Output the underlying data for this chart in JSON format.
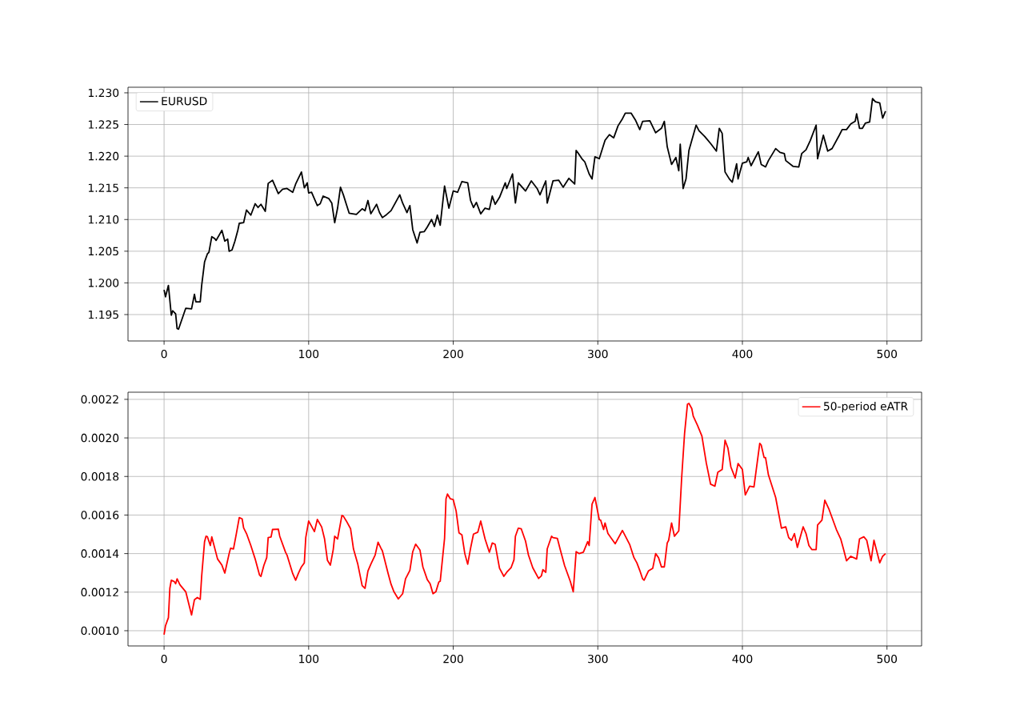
{
  "chart_data": [
    {
      "type": "line",
      "xlim": [
        -24.95,
        523.95
      ],
      "ylim": [
        1.19083,
        1.23088
      ],
      "grid": true,
      "legend": "top left",
      "xticks": [
        0,
        100,
        200,
        300,
        400,
        500
      ],
      "yticks": [
        1.195,
        {
          "value": 1.2,
          "label": "1.200"
        },
        1.205,
        {
          "value": 1.21,
          "label": "1.210"
        },
        1.215,
        {
          "value": 1.22,
          "label": "1.220"
        },
        1.225,
        {
          "value": 1.23,
          "label": "1.230"
        }
      ],
      "series": [
        {
          "name": "EURUSD",
          "color": "#000000",
          "x": [
            0,
            1,
            3,
            5,
            6,
            8,
            9,
            10,
            15,
            19,
            21,
            22,
            25,
            26,
            28,
            30,
            31,
            33,
            35,
            36,
            40,
            42,
            44,
            45,
            47,
            49,
            51,
            52,
            55,
            57,
            60,
            63,
            65,
            67,
            70,
            72,
            75,
            79,
            82,
            85,
            89,
            91,
            95,
            97,
            99,
            100,
            102,
            106,
            108,
            110,
            114,
            116,
            118,
            120,
            122,
            124,
            128,
            133,
            137,
            139,
            141,
            143,
            147,
            149,
            151,
            154,
            157,
            163,
            165,
            168,
            170,
            172,
            175,
            177,
            180,
            182,
            185,
            187,
            189,
            191,
            194,
            197,
            200,
            203,
            206,
            210,
            212,
            214,
            216,
            219,
            222,
            225,
            227,
            229,
            232,
            236,
            237,
            241,
            243,
            245,
            250,
            254,
            258,
            260,
            264,
            265,
            269,
            273,
            276,
            280,
            284,
            285,
            286,
            289,
            291,
            294,
            296,
            298,
            301,
            305,
            308,
            311,
            314,
            317,
            319,
            323,
            326,
            329,
            331,
            336,
            340,
            344,
            346,
            348,
            351,
            354,
            356,
            357,
            359,
            361,
            363,
            366,
            368,
            370,
            374,
            378,
            382,
            384,
            386,
            388,
            391,
            393,
            396,
            397,
            400,
            403,
            404,
            406,
            411,
            413,
            416,
            418,
            423,
            426,
            429,
            430,
            435,
            439,
            441,
            444,
            447,
            451,
            452,
            456,
            459,
            462,
            467,
            469,
            472,
            475,
            478,
            479,
            481,
            483,
            485,
            488,
            490,
            492,
            495,
            497,
            499
          ],
          "values": [
            1.1989,
            1.1978,
            1.1996,
            1.1949,
            1.1956,
            1.1951,
            1.1928,
            1.1927,
            1.196,
            1.1959,
            1.1982,
            1.197,
            1.197,
            1.1996,
            1.2033,
            1.2046,
            1.2048,
            1.2073,
            1.207,
            1.2067,
            1.2083,
            1.2066,
            1.2069,
            1.205,
            1.2052,
            1.2066,
            1.2083,
            1.2094,
            1.2095,
            1.2115,
            1.2107,
            1.2125,
            1.2119,
            1.2124,
            1.2113,
            1.2157,
            1.2162,
            1.2141,
            1.2148,
            1.2149,
            1.2143,
            1.2156,
            1.2175,
            1.215,
            1.2158,
            1.2142,
            1.2143,
            1.2122,
            1.2125,
            1.2137,
            1.2133,
            1.2126,
            1.2095,
            1.2118,
            1.2151,
            1.2139,
            1.211,
            1.2108,
            1.2117,
            1.2114,
            1.213,
            1.2109,
            1.2124,
            1.2111,
            1.2103,
            1.2108,
            1.2114,
            1.2139,
            1.2126,
            1.2111,
            1.2122,
            1.2084,
            1.2063,
            1.208,
            1.2081,
            1.2088,
            1.21,
            1.2089,
            1.2107,
            1.2091,
            1.2153,
            1.2118,
            1.2145,
            1.2143,
            1.216,
            1.2158,
            1.213,
            1.2119,
            1.2127,
            1.2109,
            1.2118,
            1.2116,
            1.2137,
            1.2124,
            1.2135,
            1.2158,
            1.2149,
            1.2172,
            1.2126,
            1.2158,
            1.2145,
            1.2161,
            1.2149,
            1.2139,
            1.2161,
            1.2126,
            1.2161,
            1.2162,
            1.2151,
            1.2165,
            1.2156,
            1.2209,
            1.2206,
            1.2196,
            1.2191,
            1.2172,
            1.2164,
            1.2199,
            1.2196,
            1.2225,
            1.2234,
            1.2229,
            1.2248,
            1.2259,
            1.2268,
            1.2268,
            1.2257,
            1.2242,
            1.2255,
            1.2256,
            1.2237,
            1.2244,
            1.2255,
            1.2215,
            1.2187,
            1.2198,
            1.2177,
            1.2219,
            1.2149,
            1.2164,
            1.2209,
            1.2233,
            1.2249,
            1.224,
            1.2231,
            1.222,
            1.2208,
            1.2244,
            1.2236,
            1.2175,
            1.2164,
            1.2159,
            1.2188,
            1.2164,
            1.2189,
            1.2191,
            1.2198,
            1.2185,
            1.2207,
            1.2187,
            1.2183,
            1.2193,
            1.2212,
            1.2206,
            1.2204,
            1.2193,
            1.2184,
            1.2183,
            1.2204,
            1.221,
            1.2225,
            1.2249,
            1.2196,
            1.2233,
            1.2208,
            1.2212,
            1.2233,
            1.2242,
            1.2242,
            1.2251,
            1.2255,
            1.2267,
            1.2244,
            1.2244,
            1.2252,
            1.2254,
            1.2291,
            1.2286,
            1.2284,
            1.226,
            1.2271
          ]
        }
      ]
    },
    {
      "type": "line",
      "xlim": [
        -24.95,
        523.95
      ],
      "ylim": [
        0.000921,
        0.002237
      ],
      "grid": true,
      "legend": "top right",
      "xticks": [
        0,
        100,
        200,
        300,
        400,
        500
      ],
      "yticks": [
        {
          "value": 0.001,
          "label": "0.0010"
        },
        0.0012,
        0.0014,
        0.0016,
        0.0018,
        {
          "value": 0.002,
          "label": "0.0020"
        },
        0.0022
      ],
      "series": [
        {
          "name": "50-period eATR",
          "color": "#ff0000",
          "x": [
            0,
            1,
            3,
            4,
            5,
            7,
            8,
            9,
            11,
            15,
            19,
            21,
            23,
            25,
            26,
            28,
            29,
            30,
            32,
            33,
            37,
            40,
            42,
            45,
            46,
            48,
            50,
            52,
            54,
            55,
            57,
            60,
            63,
            66,
            67,
            69,
            71,
            72,
            74,
            75,
            79,
            80,
            84,
            85,
            89,
            91,
            93,
            95,
            97,
            98,
            100,
            104,
            106,
            109,
            111,
            113,
            115,
            117,
            118,
            120,
            123,
            124,
            126,
            129,
            131,
            134,
            137,
            139,
            141,
            143,
            146,
            148,
            150,
            151,
            155,
            157,
            159,
            162,
            165,
            167,
            170,
            172,
            174,
            177,
            179,
            182,
            184,
            186,
            188,
            190,
            191,
            194,
            195,
            196,
            198,
            200,
            202,
            204,
            206,
            208,
            210,
            212,
            214,
            217,
            219,
            222,
            225,
            227,
            229,
            232,
            235,
            237,
            240,
            242,
            243,
            245,
            247,
            250,
            252,
            255,
            259,
            261,
            262,
            264,
            265,
            268,
            269,
            272,
            274,
            277,
            281,
            283,
            285,
            287,
            290,
            293,
            294,
            296,
            298,
            301,
            302,
            304,
            305,
            307,
            312,
            317,
            322,
            325,
            327,
            329,
            331,
            332,
            335,
            338,
            340,
            342,
            344,
            346,
            348,
            349,
            351,
            353,
            356,
            358,
            360,
            362,
            363,
            365,
            366,
            369,
            372,
            375,
            378,
            381,
            383,
            386,
            388,
            390,
            392,
            395,
            397,
            400,
            402,
            405,
            408,
            412,
            413,
            415,
            416,
            418,
            423,
            427,
            430,
            432,
            434,
            436,
            438,
            442,
            444,
            446,
            448,
            451,
            452,
            455,
            457,
            460,
            465,
            468,
            470,
            472,
            475,
            479,
            481,
            484,
            486,
            489,
            491,
            495,
            497,
            499
          ],
          "values": [
            0.00098,
            0.001026,
            0.001068,
            0.00122,
            0.001262,
            0.001255,
            0.001244,
            0.001269,
            0.001238,
            0.001202,
            0.001082,
            0.001161,
            0.001172,
            0.001163,
            0.001282,
            0.001462,
            0.00149,
            0.001487,
            0.001442,
            0.001487,
            0.001372,
            0.00134,
            0.001299,
            0.0014,
            0.001428,
            0.001424,
            0.001504,
            0.001587,
            0.00158,
            0.001534,
            0.001504,
            0.001442,
            0.001372,
            0.001289,
            0.001282,
            0.001338,
            0.001379,
            0.001483,
            0.001486,
            0.001525,
            0.001527,
            0.00149,
            0.001407,
            0.001393,
            0.001296,
            0.001262,
            0.001299,
            0.001331,
            0.001352,
            0.001483,
            0.001569,
            0.001514,
            0.001577,
            0.001538,
            0.001476,
            0.001365,
            0.00134,
            0.001421,
            0.00149,
            0.001476,
            0.001598,
            0.001594,
            0.00157,
            0.001529,
            0.001424,
            0.001345,
            0.001234,
            0.00122,
            0.00131,
            0.001345,
            0.001393,
            0.001459,
            0.001428,
            0.001414,
            0.001296,
            0.001241,
            0.001202,
            0.001165,
            0.001192,
            0.001269,
            0.001313,
            0.00141,
            0.001449,
            0.001418,
            0.001331,
            0.001266,
            0.001244,
            0.001192,
            0.001202,
            0.001252,
            0.001257,
            0.001479,
            0.001684,
            0.001709,
            0.001684,
            0.00168,
            0.001621,
            0.001507,
            0.001497,
            0.0014,
            0.001345,
            0.001428,
            0.001501,
            0.001511,
            0.001569,
            0.001476,
            0.001407,
            0.001455,
            0.001448,
            0.001324,
            0.001282,
            0.001303,
            0.001327,
            0.001368,
            0.00149,
            0.001532,
            0.001529,
            0.001465,
            0.001393,
            0.001327,
            0.001271,
            0.001285,
            0.001317,
            0.001303,
            0.001424,
            0.00149,
            0.001483,
            0.001479,
            0.001421,
            0.001338,
            0.001255,
            0.001202,
            0.00141,
            0.0014,
            0.001407,
            0.001462,
            0.001442,
            0.001656,
            0.001691,
            0.001576,
            0.001573,
            0.001525,
            0.001559,
            0.001504,
            0.001451,
            0.00152,
            0.001448,
            0.001379,
            0.001352,
            0.001313,
            0.001269,
            0.001262,
            0.00131,
            0.001324,
            0.0014,
            0.001379,
            0.001331,
            0.001331,
            0.001455,
            0.001469,
            0.001559,
            0.00149,
            0.001518,
            0.001794,
            0.002023,
            0.002175,
            0.002179,
            0.002152,
            0.002113,
            0.002064,
            0.002009,
            0.001871,
            0.00176,
            0.00175,
            0.001822,
            0.001836,
            0.001988,
            0.001947,
            0.00185,
            0.001792,
            0.001867,
            0.001836,
            0.001704,
            0.00175,
            0.001746,
            0.001972,
            0.001963,
            0.001898,
            0.001898,
            0.001808,
            0.001691,
            0.001532,
            0.001539,
            0.001483,
            0.001469,
            0.001504,
            0.001432,
            0.001539,
            0.001504,
            0.001442,
            0.001421,
            0.001421,
            0.001548,
            0.001573,
            0.001677,
            0.001628,
            0.001525,
            0.001476,
            0.001421,
            0.001363,
            0.001386,
            0.001372,
            0.001476,
            0.001487,
            0.001469,
            0.001363,
            0.001469,
            0.001352,
            0.001386,
            0.0014
          ]
        }
      ]
    }
  ]
}
